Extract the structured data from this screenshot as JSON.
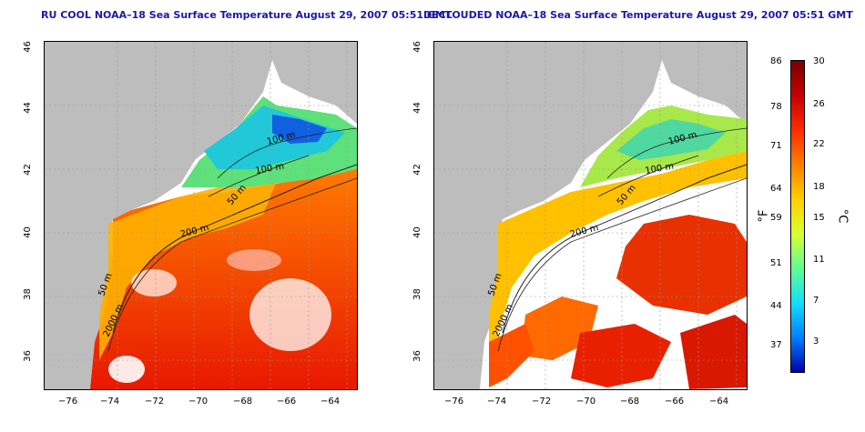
{
  "left_map": {
    "title": "RU COOL NOAA–18 Sea Surface Temperature August 29, 2007 05:51 GMT",
    "contour_labels": [
      "100 m",
      "100 m",
      "50 m",
      "200 m",
      "50 m",
      "2000 m"
    ]
  },
  "right_map": {
    "title": "DECLOUDED NOAA–18 Sea Surface Temperature August 29, 2007 05:51 GMT",
    "contour_labels": [
      "100 m",
      "100 m",
      "50 m",
      "200 m",
      "50 m",
      "2000 m"
    ]
  },
  "axes": {
    "lon_ticks": [
      "−76",
      "−74",
      "−72",
      "−70",
      "−68",
      "−66",
      "−64"
    ],
    "lat_ticks": [
      "46",
      "44",
      "42",
      "40",
      "38",
      "36"
    ]
  },
  "colorbar": {
    "fahrenheit_ticks": [
      "86",
      "78",
      "71",
      "64",
      "59",
      "51",
      "44",
      "37"
    ],
    "celsius_ticks": [
      "30",
      "26",
      "22",
      "18",
      "15",
      "11",
      "7",
      "3"
    ],
    "unit_f": "°F",
    "unit_c": "°C",
    "colors": [
      "#7a0000",
      "#c40000",
      "#ff2a00",
      "#ff8000",
      "#ffd000",
      "#d8ff30",
      "#60ff90",
      "#10e0ff",
      "#0080ff",
      "#0000b0"
    ]
  }
}
